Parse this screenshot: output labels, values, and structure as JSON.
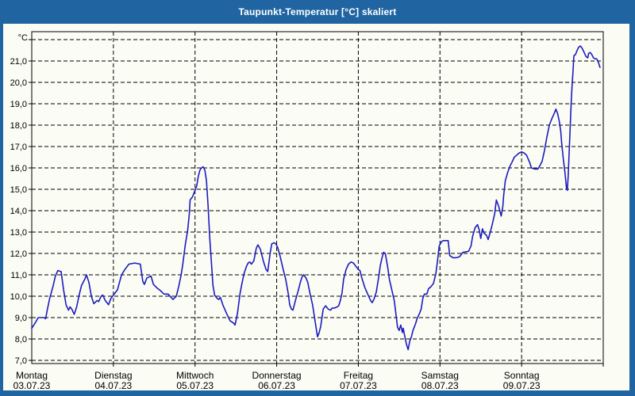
{
  "window": {
    "title": "Taupunkt-Temperatur [°C] skaliert"
  },
  "colors": {
    "chrome": "#2065a1",
    "background": "#fbfcf4",
    "line": "#1c1cbe",
    "grid": "#000000",
    "frame": "#000000",
    "text": "#000000",
    "title_text": "#ffffff"
  },
  "axes": {
    "unit_label": "°C",
    "y_min": 7,
    "y_max": 22,
    "y_step": 1,
    "y_label_max": 21,
    "decimal_separator": ",",
    "x_days": [
      {
        "name": "Montag",
        "date": "03.07.23"
      },
      {
        "name": "Dienstag",
        "date": "04.07.23"
      },
      {
        "name": "Mittwoch",
        "date": "05.07.23"
      },
      {
        "name": "Donnerstag",
        "date": "06.07.23"
      },
      {
        "name": "Freitag",
        "date": "07.07.23"
      },
      {
        "name": "Samstag",
        "date": "08.07.23"
      },
      {
        "name": "Sonntag",
        "date": "09.07.23"
      }
    ]
  },
  "chart_data": {
    "type": "line",
    "title": "Taupunkt-Temperatur [°C] skaliert",
    "xlabel": "",
    "ylabel": "°C",
    "ylim": [
      7,
      22
    ],
    "xlim_days": [
      0,
      7
    ],
    "grid": "dashed",
    "legend": "none",
    "categories": [
      "Montag 03.07.23",
      "Dienstag 04.07.23",
      "Mittwoch 05.07.23",
      "Donnerstag 06.07.23",
      "Freitag 07.07.23",
      "Samstag 08.07.23",
      "Sonntag 09.07.23"
    ],
    "series": [
      {
        "name": "Taupunkt [°C]",
        "points_format": "[time_in_days_from_Mon_0h, dew_point_C]",
        "points": [
          [
            0.0,
            8.5
          ],
          [
            0.05,
            8.8
          ],
          [
            0.08,
            9.0
          ],
          [
            0.15,
            9.0
          ],
          [
            0.17,
            8.95
          ],
          [
            0.19,
            9.35
          ],
          [
            0.22,
            9.9
          ],
          [
            0.26,
            10.45
          ],
          [
            0.29,
            10.95
          ],
          [
            0.32,
            11.2
          ],
          [
            0.36,
            11.15
          ],
          [
            0.39,
            10.3
          ],
          [
            0.42,
            9.6
          ],
          [
            0.45,
            9.35
          ],
          [
            0.47,
            9.5
          ],
          [
            0.49,
            9.4
          ],
          [
            0.52,
            9.15
          ],
          [
            0.55,
            9.5
          ],
          [
            0.58,
            10.05
          ],
          [
            0.61,
            10.5
          ],
          [
            0.65,
            10.8
          ],
          [
            0.67,
            11.0
          ],
          [
            0.7,
            10.65
          ],
          [
            0.73,
            10.0
          ],
          [
            0.76,
            9.65
          ],
          [
            0.8,
            9.8
          ],
          [
            0.82,
            9.75
          ],
          [
            0.85,
            10.0
          ],
          [
            0.87,
            10.05
          ],
          [
            0.9,
            9.8
          ],
          [
            0.94,
            9.6
          ],
          [
            0.97,
            9.9
          ],
          [
            1.0,
            10.05
          ],
          [
            1.05,
            10.3
          ],
          [
            1.1,
            11.0
          ],
          [
            1.14,
            11.25
          ],
          [
            1.19,
            11.5
          ],
          [
            1.26,
            11.55
          ],
          [
            1.33,
            11.5
          ],
          [
            1.36,
            10.7
          ],
          [
            1.38,
            10.55
          ],
          [
            1.41,
            10.85
          ],
          [
            1.46,
            10.95
          ],
          [
            1.49,
            10.55
          ],
          [
            1.53,
            10.4
          ],
          [
            1.58,
            10.25
          ],
          [
            1.62,
            10.1
          ],
          [
            1.67,
            10.1
          ],
          [
            1.73,
            9.85
          ],
          [
            1.77,
            10.0
          ],
          [
            1.8,
            10.45
          ],
          [
            1.83,
            11.0
          ],
          [
            1.85,
            11.5
          ],
          [
            1.88,
            12.4
          ],
          [
            1.91,
            13.1
          ],
          [
            1.93,
            13.85
          ],
          [
            1.94,
            14.5
          ],
          [
            1.97,
            14.65
          ],
          [
            2.0,
            14.95
          ],
          [
            2.02,
            15.15
          ],
          [
            2.04,
            15.6
          ],
          [
            2.06,
            15.9
          ],
          [
            2.08,
            16.0
          ],
          [
            2.1,
            16.05
          ],
          [
            2.12,
            15.9
          ],
          [
            2.14,
            15.4
          ],
          [
            2.16,
            14.2
          ],
          [
            2.18,
            12.75
          ],
          [
            2.2,
            11.6
          ],
          [
            2.22,
            10.5
          ],
          [
            2.24,
            10.05
          ],
          [
            2.27,
            9.9
          ],
          [
            2.29,
            9.85
          ],
          [
            2.31,
            9.95
          ],
          [
            2.34,
            9.6
          ],
          [
            2.38,
            9.25
          ],
          [
            2.43,
            8.85
          ],
          [
            2.47,
            8.75
          ],
          [
            2.49,
            8.65
          ],
          [
            2.52,
            9.2
          ],
          [
            2.55,
            10.1
          ],
          [
            2.57,
            10.5
          ],
          [
            2.6,
            11.05
          ],
          [
            2.63,
            11.4
          ],
          [
            2.65,
            11.55
          ],
          [
            2.67,
            11.6
          ],
          [
            2.69,
            11.5
          ],
          [
            2.72,
            11.65
          ],
          [
            2.75,
            12.25
          ],
          [
            2.77,
            12.4
          ],
          [
            2.8,
            12.2
          ],
          [
            2.84,
            11.6
          ],
          [
            2.87,
            11.25
          ],
          [
            2.89,
            11.15
          ],
          [
            2.92,
            12.0
          ],
          [
            2.94,
            12.45
          ],
          [
            2.97,
            12.5
          ],
          [
            2.99,
            12.45
          ],
          [
            3.01,
            12.3
          ],
          [
            3.04,
            11.9
          ],
          [
            3.08,
            11.25
          ],
          [
            3.11,
            10.8
          ],
          [
            3.14,
            10.15
          ],
          [
            3.16,
            9.6
          ],
          [
            3.18,
            9.4
          ],
          [
            3.2,
            9.35
          ],
          [
            3.23,
            9.8
          ],
          [
            3.26,
            10.2
          ],
          [
            3.29,
            10.65
          ],
          [
            3.31,
            10.9
          ],
          [
            3.33,
            11.0
          ],
          [
            3.36,
            10.85
          ],
          [
            3.38,
            10.65
          ],
          [
            3.41,
            10.1
          ],
          [
            3.44,
            9.6
          ],
          [
            3.47,
            8.85
          ],
          [
            3.5,
            8.1
          ],
          [
            3.52,
            8.3
          ],
          [
            3.54,
            8.6
          ],
          [
            3.57,
            9.4
          ],
          [
            3.6,
            9.55
          ],
          [
            3.63,
            9.4
          ],
          [
            3.66,
            9.35
          ],
          [
            3.68,
            9.45
          ],
          [
            3.71,
            9.45
          ],
          [
            3.74,
            9.5
          ],
          [
            3.76,
            9.55
          ],
          [
            3.78,
            9.8
          ],
          [
            3.8,
            10.15
          ],
          [
            3.82,
            10.8
          ],
          [
            3.85,
            11.25
          ],
          [
            3.88,
            11.5
          ],
          [
            3.91,
            11.6
          ],
          [
            3.94,
            11.55
          ],
          [
            3.97,
            11.4
          ],
          [
            4.0,
            11.25
          ],
          [
            4.02,
            11.2
          ],
          [
            4.04,
            10.9
          ],
          [
            4.08,
            10.4
          ],
          [
            4.12,
            10.05
          ],
          [
            4.15,
            9.8
          ],
          [
            4.17,
            9.7
          ],
          [
            4.19,
            9.85
          ],
          [
            4.22,
            10.2
          ],
          [
            4.25,
            10.9
          ],
          [
            4.27,
            11.45
          ],
          [
            4.29,
            11.8
          ],
          [
            4.31,
            12.05
          ],
          [
            4.33,
            12.0
          ],
          [
            4.36,
            11.35
          ],
          [
            4.38,
            10.8
          ],
          [
            4.41,
            10.3
          ],
          [
            4.44,
            9.8
          ],
          [
            4.46,
            9.2
          ],
          [
            4.48,
            8.55
          ],
          [
            4.5,
            8.4
          ],
          [
            4.52,
            8.65
          ],
          [
            4.54,
            8.3
          ],
          [
            4.55,
            8.5
          ],
          [
            4.57,
            8.1
          ],
          [
            4.59,
            7.75
          ],
          [
            4.61,
            7.5
          ],
          [
            4.63,
            7.9
          ],
          [
            4.65,
            8.1
          ],
          [
            4.67,
            8.4
          ],
          [
            4.7,
            8.7
          ],
          [
            4.72,
            8.95
          ],
          [
            4.75,
            9.2
          ],
          [
            4.77,
            9.4
          ],
          [
            4.79,
            9.9
          ],
          [
            4.81,
            10.1
          ],
          [
            4.84,
            10.1
          ],
          [
            4.86,
            10.35
          ],
          [
            4.89,
            10.45
          ],
          [
            4.92,
            10.6
          ],
          [
            4.95,
            11.05
          ],
          [
            4.97,
            11.65
          ],
          [
            4.99,
            12.35
          ],
          [
            5.02,
            12.55
          ],
          [
            5.04,
            12.6
          ],
          [
            5.1,
            12.6
          ],
          [
            5.12,
            11.9
          ],
          [
            5.16,
            11.8
          ],
          [
            5.2,
            11.8
          ],
          [
            5.24,
            11.85
          ],
          [
            5.28,
            12.05
          ],
          [
            5.35,
            12.1
          ],
          [
            5.38,
            12.35
          ],
          [
            5.4,
            12.8
          ],
          [
            5.43,
            13.2
          ],
          [
            5.46,
            13.35
          ],
          [
            5.48,
            13.1
          ],
          [
            5.5,
            12.7
          ],
          [
            5.52,
            13.15
          ],
          [
            5.54,
            12.95
          ],
          [
            5.57,
            12.85
          ],
          [
            5.59,
            12.65
          ],
          [
            5.62,
            13.05
          ],
          [
            5.64,
            13.35
          ],
          [
            5.67,
            13.85
          ],
          [
            5.69,
            14.5
          ],
          [
            5.72,
            14.2
          ],
          [
            5.75,
            13.75
          ],
          [
            5.77,
            14.2
          ],
          [
            5.78,
            14.7
          ],
          [
            5.8,
            15.4
          ],
          [
            5.83,
            15.8
          ],
          [
            5.86,
            16.1
          ],
          [
            5.88,
            16.25
          ],
          [
            5.91,
            16.5
          ],
          [
            5.94,
            16.6
          ],
          [
            5.97,
            16.7
          ],
          [
            6.0,
            16.75
          ],
          [
            6.03,
            16.7
          ],
          [
            6.06,
            16.6
          ],
          [
            6.1,
            16.25
          ],
          [
            6.12,
            16.0
          ],
          [
            6.16,
            15.95
          ],
          [
            6.2,
            15.95
          ],
          [
            6.23,
            16.15
          ],
          [
            6.25,
            16.3
          ],
          [
            6.28,
            16.8
          ],
          [
            6.31,
            17.45
          ],
          [
            6.34,
            18.0
          ],
          [
            6.37,
            18.3
          ],
          [
            6.4,
            18.55
          ],
          [
            6.42,
            18.75
          ],
          [
            6.44,
            18.55
          ],
          [
            6.46,
            18.2
          ],
          [
            6.48,
            17.7
          ],
          [
            6.49,
            17.2
          ],
          [
            6.51,
            16.45
          ],
          [
            6.53,
            15.8
          ],
          [
            6.55,
            15.05
          ],
          [
            6.56,
            14.95
          ],
          [
            6.57,
            15.6
          ],
          [
            6.59,
            17.4
          ],
          [
            6.61,
            19.3
          ],
          [
            6.62,
            19.95
          ],
          [
            6.63,
            20.5
          ],
          [
            6.64,
            21.25
          ],
          [
            6.66,
            21.3
          ],
          [
            6.68,
            21.5
          ],
          [
            6.7,
            21.65
          ],
          [
            6.72,
            21.7
          ],
          [
            6.74,
            21.6
          ],
          [
            6.76,
            21.45
          ],
          [
            6.79,
            21.2
          ],
          [
            6.81,
            21.15
          ],
          [
            6.82,
            21.35
          ],
          [
            6.84,
            21.4
          ],
          [
            6.86,
            21.3
          ],
          [
            6.88,
            21.15
          ],
          [
            6.9,
            21.1
          ],
          [
            6.92,
            21.1
          ],
          [
            6.94,
            20.95
          ],
          [
            6.96,
            20.7
          ]
        ]
      }
    ]
  }
}
